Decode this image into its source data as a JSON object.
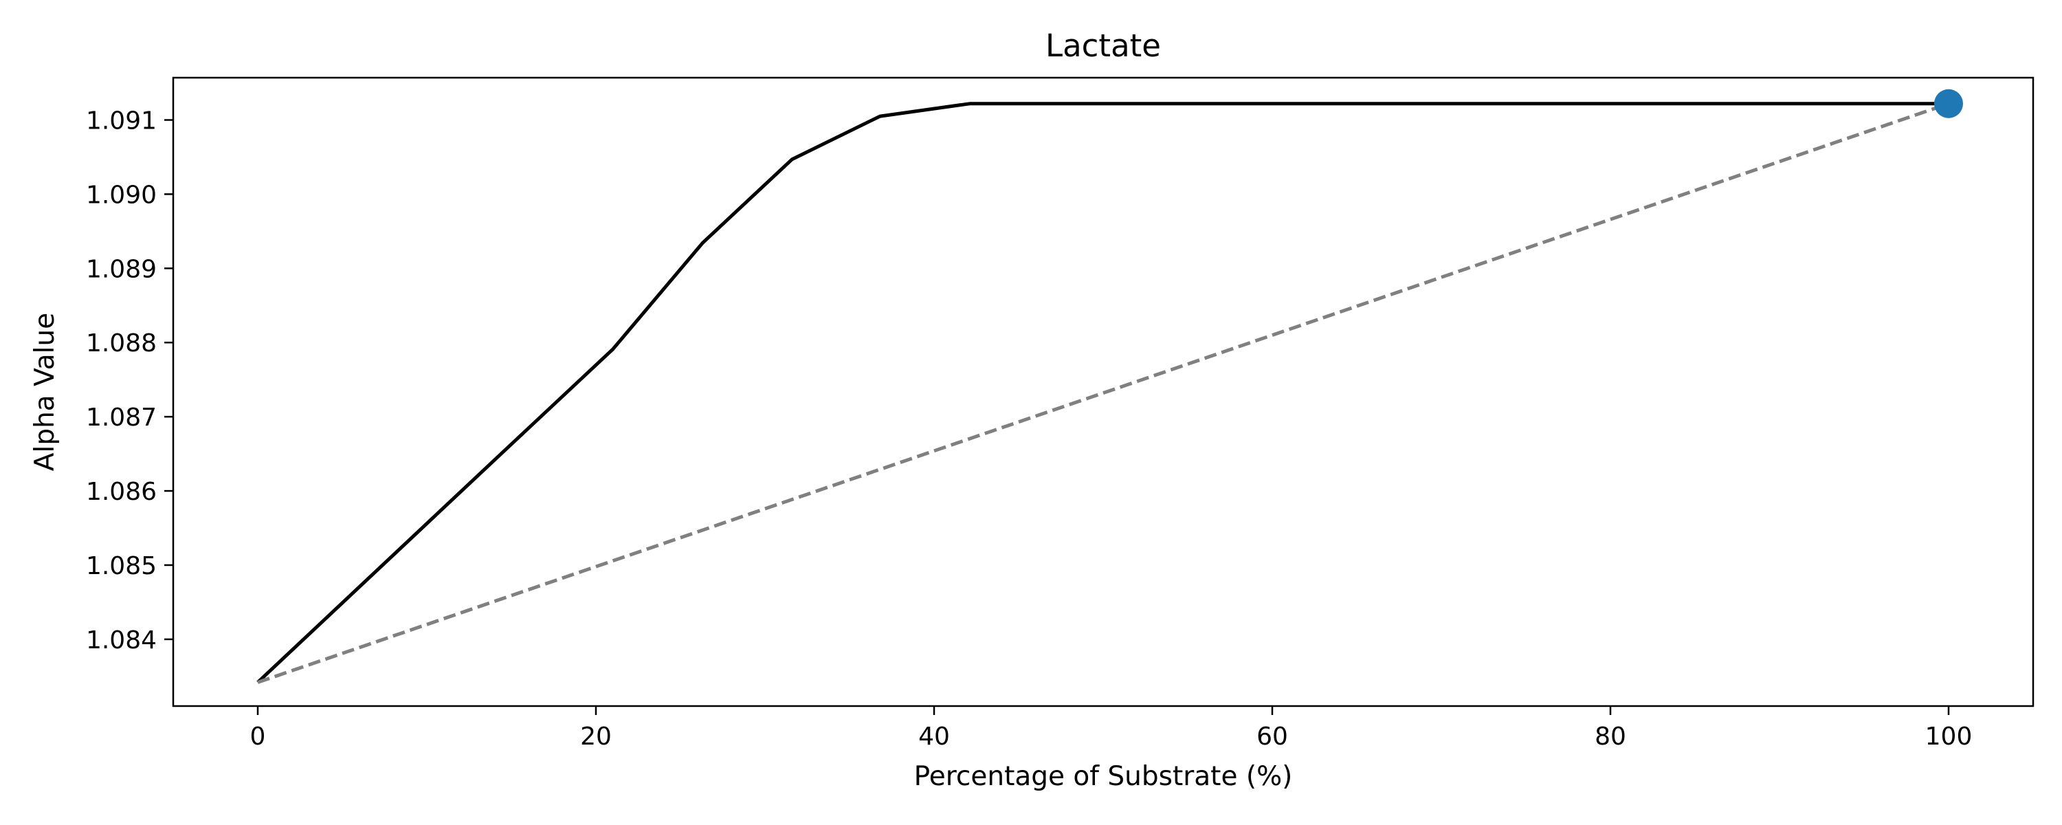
{
  "chart_data": {
    "type": "line",
    "title": "Lactate",
    "xlabel": "Percentage of Substrate (%)",
    "ylabel": "Alpha Value",
    "xlim": [
      -5,
      105
    ],
    "ylim": [
      1.0831,
      1.09157
    ],
    "xticks": [
      0,
      20,
      40,
      60,
      80,
      100
    ],
    "xtick_labels": [
      "0",
      "20",
      "40",
      "60",
      "80",
      "100"
    ],
    "yticks": [
      1.084,
      1.085,
      1.086,
      1.087,
      1.088,
      1.089,
      1.09,
      1.091
    ],
    "ytick_labels": [
      "1.084",
      "1.085",
      "1.086",
      "1.087",
      "1.088",
      "1.089",
      "1.090",
      "1.091"
    ],
    "grid": false,
    "series": [
      {
        "style": "solid",
        "color": "#000000",
        "x": [
          0,
          5,
          10,
          15,
          21,
          26.3,
          31.6,
          36.8,
          42.1,
          50,
          60,
          70,
          80,
          90,
          100
        ],
        "y": [
          1.08342,
          1.08449,
          1.08556,
          1.08663,
          1.08791,
          1.08934,
          1.09047,
          1.09105,
          1.09122,
          1.09122,
          1.09122,
          1.09122,
          1.09122,
          1.09122,
          1.09122
        ]
      },
      {
        "style": "dashed",
        "color": "#808080",
        "x": [
          0,
          100
        ],
        "y": [
          1.08342,
          1.09122
        ]
      }
    ],
    "points": [
      {
        "x": 100,
        "y": 1.09122,
        "color": "#1f77b4"
      }
    ]
  }
}
